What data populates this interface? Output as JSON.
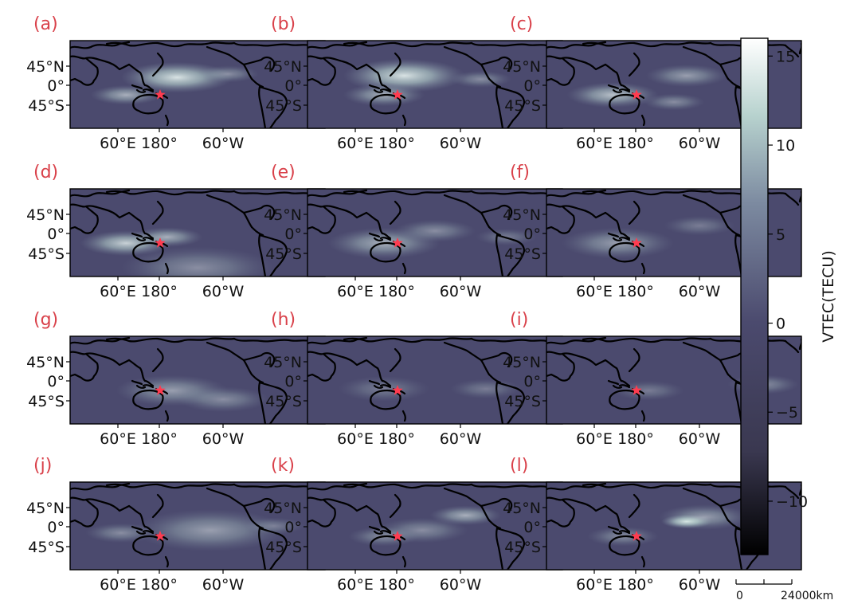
{
  "colors": {
    "map_base": "#4b4a6e",
    "panel_letter": "#d9414a",
    "star": "#ff3b4f",
    "coastline": "#000000"
  },
  "panels": [
    {
      "label": "(a)",
      "hotspots": [
        [
          0.42,
          0.42,
          0.22,
          0.9
        ],
        [
          0.22,
          0.62,
          0.14,
          0.6
        ],
        [
          0.62,
          0.38,
          0.12,
          0.4
        ]
      ]
    },
    {
      "label": "(b)",
      "hotspots": [
        [
          0.38,
          0.4,
          0.24,
          0.9
        ],
        [
          0.3,
          0.62,
          0.16,
          0.6
        ],
        [
          0.68,
          0.44,
          0.12,
          0.4
        ]
      ]
    },
    {
      "label": "(c)",
      "hotspots": [
        [
          0.26,
          0.62,
          0.18,
          0.7
        ],
        [
          0.55,
          0.4,
          0.16,
          0.5
        ],
        [
          0.5,
          0.7,
          0.12,
          0.4
        ]
      ]
    },
    {
      "label": "(d)",
      "hotspots": [
        [
          0.22,
          0.62,
          0.18,
          0.8
        ],
        [
          0.38,
          0.55,
          0.14,
          0.6
        ],
        [
          0.5,
          0.9,
          0.3,
          0.4
        ]
      ]
    },
    {
      "label": "(e)",
      "hotspots": [
        [
          0.3,
          0.62,
          0.22,
          0.6
        ],
        [
          0.5,
          0.48,
          0.16,
          0.4
        ],
        [
          0.78,
          0.55,
          0.12,
          0.3
        ]
      ]
    },
    {
      "label": "(f)",
      "hotspots": [
        [
          0.28,
          0.62,
          0.22,
          0.5
        ],
        [
          0.6,
          0.42,
          0.14,
          0.3
        ]
      ]
    },
    {
      "label": "(g)",
      "hotspots": [
        [
          0.4,
          0.62,
          0.22,
          0.5
        ],
        [
          0.6,
          0.72,
          0.18,
          0.4
        ]
      ]
    },
    {
      "label": "(h)",
      "hotspots": [
        [
          0.3,
          0.6,
          0.18,
          0.3
        ],
        [
          0.7,
          0.6,
          0.14,
          0.3
        ]
      ]
    },
    {
      "label": "(i)",
      "hotspots": [
        [
          0.85,
          0.55,
          0.14,
          0.4
        ],
        [
          0.4,
          0.62,
          0.14,
          0.3
        ]
      ]
    },
    {
      "label": "(j)",
      "hotspots": [
        [
          0.55,
          0.55,
          0.3,
          0.5
        ],
        [
          0.2,
          0.58,
          0.14,
          0.4
        ],
        [
          0.8,
          0.5,
          0.12,
          0.3
        ]
      ]
    },
    {
      "label": "(k)",
      "hotspots": [
        [
          0.62,
          0.38,
          0.14,
          0.6
        ],
        [
          0.45,
          0.55,
          0.18,
          0.4
        ],
        [
          0.3,
          0.62,
          0.14,
          0.4
        ]
      ]
    },
    {
      "label": "(l)",
      "hotspots": [
        [
          0.55,
          0.45,
          0.1,
          1.0
        ],
        [
          0.62,
          0.4,
          0.18,
          0.5
        ],
        [
          0.3,
          0.62,
          0.14,
          0.4
        ]
      ]
    }
  ],
  "axes": {
    "y_ticks": [
      "45°N",
      "0°",
      "45°S"
    ],
    "x_ticks": [
      "60°E",
      "180°",
      "60°W"
    ]
  },
  "colorbar": {
    "label": "VTEC(TECU)",
    "ticks": [
      "15",
      "10",
      "5",
      "0",
      "−5",
      "−10"
    ],
    "range": [
      -13,
      16
    ],
    "tick_values": [
      15,
      10,
      5,
      0,
      -5,
      -10
    ],
    "stops": [
      "#000000",
      "#3a3850",
      "#4b4a6e",
      "#7c8aa0",
      "#b7d2ce",
      "#ffffff"
    ]
  },
  "scalebar": {
    "start_label": "0",
    "end_label": "24000km"
  }
}
